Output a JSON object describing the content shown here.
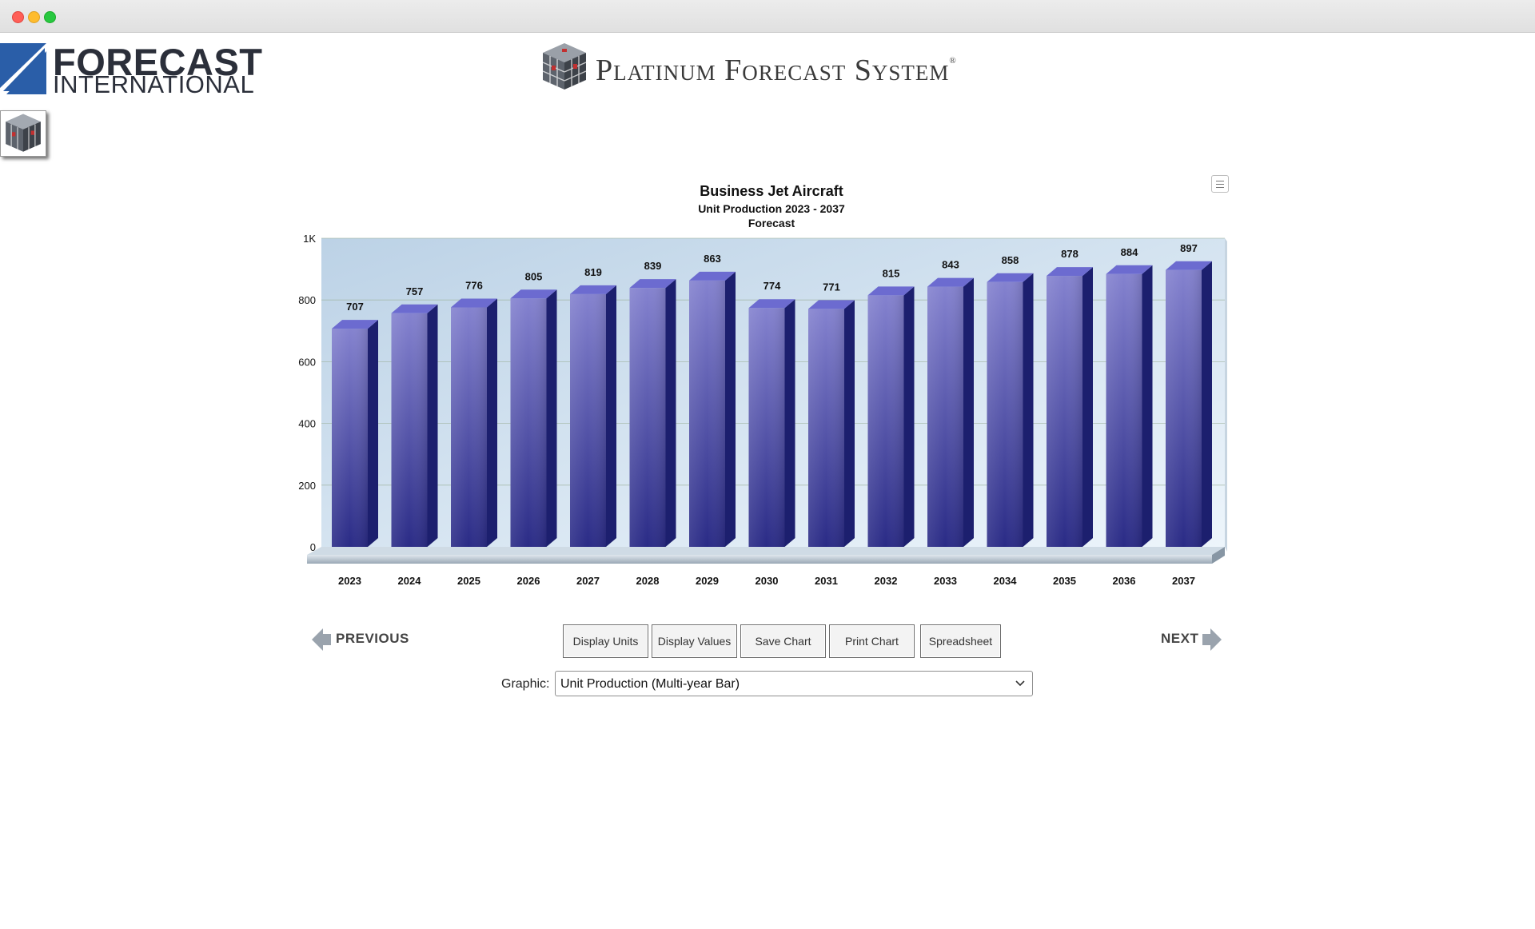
{
  "header": {
    "brand_line1": "FORECAST",
    "brand_line2": "INTERNATIONAL",
    "system_title": "Platinum Forecast System",
    "registered_mark": "®"
  },
  "icons": {
    "brand": "forecast-international-logo-icon",
    "cube": "platinum-cube-icon",
    "menu": "hamburger-menu-icon",
    "prev": "arrow-left-icon",
    "next": "arrow-right-icon",
    "dropdown": "chevron-down-icon"
  },
  "colors": {
    "bar_face_top": "#8482cf",
    "bar_face_bottom": "#2a2b86",
    "bar_side": "#1c1f6e",
    "plot_bg": "#d7e6f2",
    "nav_arrow": "#9aa3ad"
  },
  "chart_data": {
    "type": "bar",
    "title": "Business Jet Aircraft",
    "subtitle": "Unit Production 2023 - 2037",
    "subtitle2": "Forecast",
    "categories": [
      "2023",
      "2024",
      "2025",
      "2026",
      "2027",
      "2028",
      "2029",
      "2030",
      "2031",
      "2032",
      "2033",
      "2034",
      "2035",
      "2036",
      "2037"
    ],
    "values": [
      707,
      757,
      776,
      805,
      819,
      839,
      863,
      774,
      771,
      815,
      843,
      858,
      878,
      884,
      897
    ],
    "yticks": [
      "0",
      "200",
      "400",
      "600",
      "800",
      "1K"
    ],
    "ylim": [
      0,
      1000
    ],
    "grid": true,
    "style": "3d"
  },
  "nav": {
    "previous_label": "PREVIOUS",
    "next_label": "NEXT"
  },
  "buttons": {
    "display_units": "Display Units",
    "display_values": "Display Values",
    "save_chart": "Save Chart",
    "print_chart": "Print Chart",
    "spreadsheet": "Spreadsheet"
  },
  "graphic": {
    "label": "Graphic:",
    "selected": "Unit Production (Multi-year Bar)"
  }
}
